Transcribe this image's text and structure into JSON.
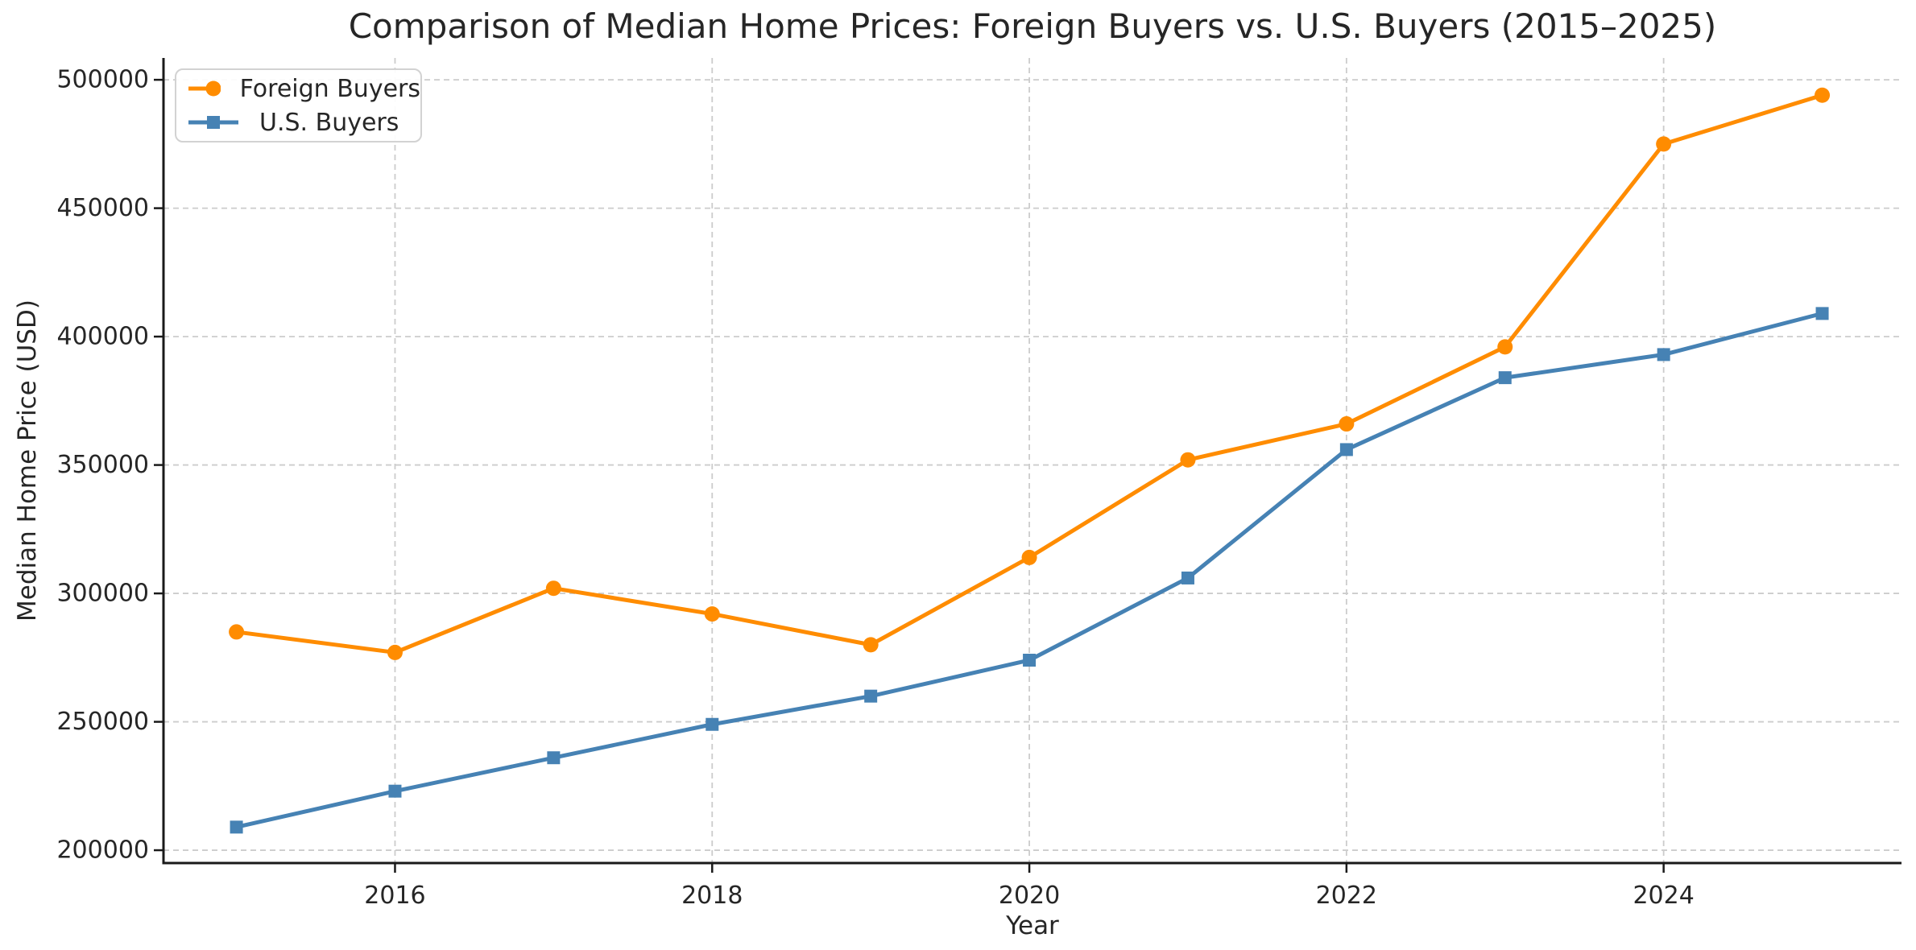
{
  "chart_data": {
    "type": "line",
    "title": "Comparison of Median Home Prices: Foreign Buyers vs. U.S. Buyers (2015–2025)",
    "xlabel": "Year",
    "ylabel": "Median Home Price (USD)",
    "x": [
      2015,
      2016,
      2017,
      2018,
      2019,
      2020,
      2021,
      2022,
      2023,
      2024,
      2025
    ],
    "series": [
      {
        "name": "Foreign Buyers",
        "marker": "circle",
        "color": "#ff8c00",
        "values": [
          285000,
          277000,
          302000,
          292000,
          280000,
          314000,
          352000,
          366000,
          396000,
          475000,
          494000
        ]
      },
      {
        "name": "U.S. Buyers",
        "marker": "square",
        "color": "#4682b4",
        "values": [
          209000,
          223000,
          236000,
          249000,
          260000,
          274000,
          306000,
          356000,
          384000,
          393000,
          409000
        ]
      }
    ],
    "xticks": [
      2016,
      2018,
      2020,
      2022,
      2024
    ],
    "yticks": [
      200000,
      250000,
      300000,
      350000,
      400000,
      450000,
      500000
    ],
    "xlim": [
      2014.54,
      2025.5
    ],
    "ylim": [
      195000,
      508500
    ],
    "grid": true,
    "grid_color": "#cccccc",
    "axis_color": "#1a1a1a",
    "tick_label_color": "#262626",
    "legend_position": "upper left"
  }
}
